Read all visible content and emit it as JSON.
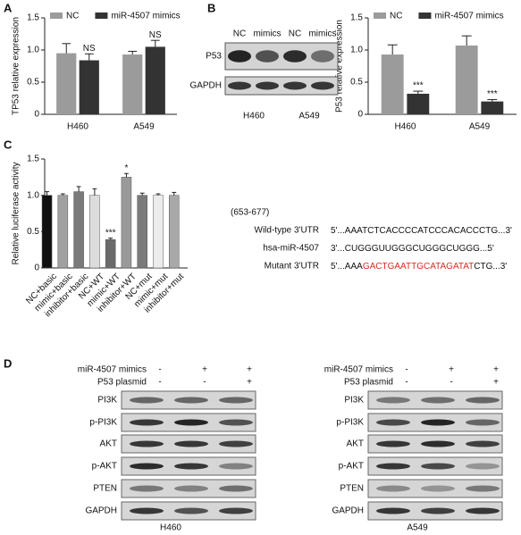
{
  "panel_labels": [
    "A",
    "B",
    "C",
    "D"
  ],
  "chart_data": [
    {
      "type": "bar",
      "ylabel": "TP53 relative expression",
      "categories": [
        "H460",
        "A549"
      ],
      "ylim": [
        0,
        1.5
      ],
      "yticks": [
        0,
        0.5,
        {
          "value": 1,
          "label": "1.0"
        },
        1.5
      ],
      "grid": false,
      "series": [
        {
          "name": "NC",
          "color": "#9b9b9b",
          "values": [
            0.95,
            0.93
          ],
          "errors": [
            0.15,
            0.05
          ]
        },
        {
          "name": "miR-4507 mimics",
          "color": "#333333",
          "values": [
            0.84,
            1.05
          ],
          "errors": [
            0.1,
            0.1
          ],
          "labels": [
            "NS",
            "NS"
          ]
        }
      ]
    },
    {
      "type": "bar",
      "ylabel": "P53 relative expression",
      "categories": [
        "H460",
        "A549"
      ],
      "ylim": [
        0,
        1.5
      ],
      "yticks": [
        0,
        0.5,
        {
          "value": 1,
          "label": "1.0"
        },
        1.5
      ],
      "grid": false,
      "series": [
        {
          "name": "NC",
          "color": "#9b9b9b",
          "values": [
            0.93,
            1.07
          ],
          "errors": [
            0.15,
            0.15
          ]
        },
        {
          "name": "miR-4507 mimics",
          "color": "#333333",
          "values": [
            0.32,
            0.2
          ],
          "errors": [
            0.04,
            0.03
          ],
          "labels": [
            "***",
            "***"
          ]
        }
      ]
    },
    {
      "type": "bar",
      "ylabel": "Relative luciferase activity",
      "categories": [
        "NC+basic",
        "mimic+basic",
        "inhibitor+basic",
        "NC+WT",
        "mimic+WT",
        "inhibitor+WT",
        "NC+mut",
        "mimic+mut",
        "inhibitor+mut"
      ],
      "ylim": [
        0,
        1.5
      ],
      "yticks": [
        0,
        0.5,
        {
          "value": 1,
          "label": "1.0"
        },
        1.5
      ],
      "grid": false,
      "series": [
        {
          "colors": [
            "#111111",
            "#a0a0a0",
            "#7a7a7a",
            "#dcdcdc",
            "#6a6a6a",
            "#9a9a9a",
            "#7a7a7a",
            "#ececec",
            "#a8a8a8"
          ],
          "values": [
            1.0,
            1.0,
            1.05,
            1.0,
            0.39,
            1.25,
            1.0,
            1.0,
            1.0
          ],
          "errors": [
            0.05,
            0.02,
            0.07,
            0.09,
            0.02,
            0.05,
            0.03,
            0.02,
            0.04
          ],
          "labels": [
            null,
            null,
            null,
            null,
            "***",
            "*",
            null,
            null,
            null
          ]
        }
      ]
    }
  ],
  "blot_b": {
    "lanes": [
      "NC",
      "mimics",
      "NC",
      "mimics"
    ],
    "proteins": [
      "P53",
      "GAPDH"
    ],
    "cells": [
      "H460",
      "A549"
    ]
  },
  "sequence": {
    "range": "(653-677)",
    "highlight_color": "#d62d20",
    "rows": [
      {
        "label": "Wild-type 3'UTR",
        "parts": [
          "5'...AAATCTCACCCCATCCCACACCCTG...3'"
        ]
      },
      {
        "label": "hsa-miR-4507",
        "parts": [
          "3'...CUGGGUUGGGCUGGGCUGGG...5'"
        ]
      },
      {
        "label": "Mutant 3'UTR",
        "parts": [
          "5'...AAA",
          "GACTGAATTGCATAGATAT",
          "CTG...3'"
        ]
      }
    ]
  },
  "blot_d": [
    {
      "conditions": [
        {
          "name": "miR-4507 mimics",
          "marks": [
            "-",
            "+",
            "+"
          ]
        },
        {
          "name": "P53 plasmid",
          "marks": [
            "-",
            "-",
            "+"
          ]
        }
      ],
      "proteins": [
        "PI3K",
        "p-PI3K",
        "AKT",
        "p-AKT",
        "PTEN",
        "GAPDH"
      ],
      "cell": "H460"
    },
    {
      "conditions": [
        {
          "name": "miR-4507 mimics",
          "marks": [
            "-",
            "+",
            "+"
          ]
        },
        {
          "name": "P53 plasmid",
          "marks": [
            "-",
            "-",
            "+"
          ]
        }
      ],
      "proteins": [
        "PI3K",
        "p-PI3K",
        "AKT",
        "p-AKT",
        "PTEN",
        "GAPDH"
      ],
      "cell": "A549"
    }
  ]
}
